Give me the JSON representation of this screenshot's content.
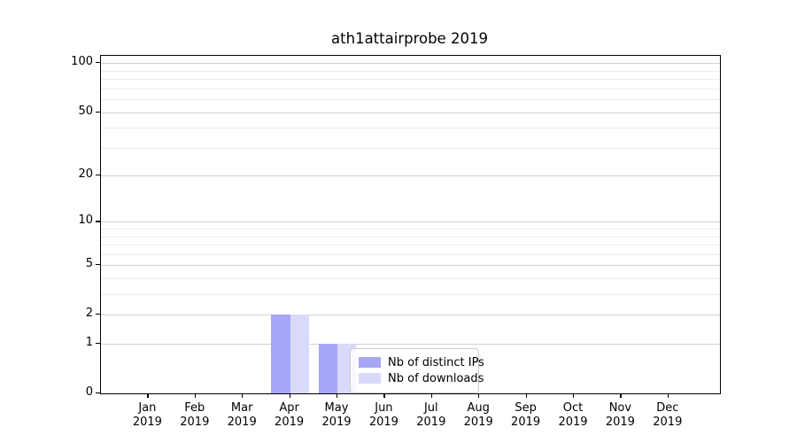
{
  "figure": {
    "title": "ath1attairprobe 2019"
  },
  "chart_data": {
    "type": "bar",
    "title": "ath1attairprobe 2019",
    "xlabel": "",
    "ylabel": "",
    "categories": [
      "Jan",
      "Feb",
      "Mar",
      "Apr",
      "May",
      "Jun",
      "Jul",
      "Aug",
      "Sep",
      "Oct",
      "Nov",
      "Dec"
    ],
    "category_year": "2019",
    "series": [
      {
        "name": "Nb of distinct IPs",
        "color": "#a6a6f6",
        "values": [
          0,
          0,
          0,
          2,
          1,
          0,
          0,
          0,
          0,
          0,
          0,
          0
        ]
      },
      {
        "name": "Nb of downloads",
        "color": "#d9d9f9",
        "values": [
          0,
          0,
          0,
          2,
          1,
          0,
          0,
          0,
          0,
          0,
          0,
          0
        ]
      }
    ],
    "yscale": "log1p",
    "ylim": [
      0,
      111
    ],
    "yticks": [
      0,
      1,
      2,
      5,
      10,
      20,
      50,
      100
    ],
    "minor_gridlines": [
      3,
      4,
      6,
      7,
      8,
      9,
      30,
      40,
      60,
      70,
      80,
      90
    ],
    "grid": true,
    "legend": {
      "position": "lower center-right inside plot",
      "entries": [
        "Nb of distinct IPs",
        "Nb of downloads"
      ]
    },
    "colors": {
      "axis": "#000000",
      "major_grid": "#d2d2d2",
      "minor_grid": "#ebebeb",
      "background": "#ffffff"
    }
  }
}
